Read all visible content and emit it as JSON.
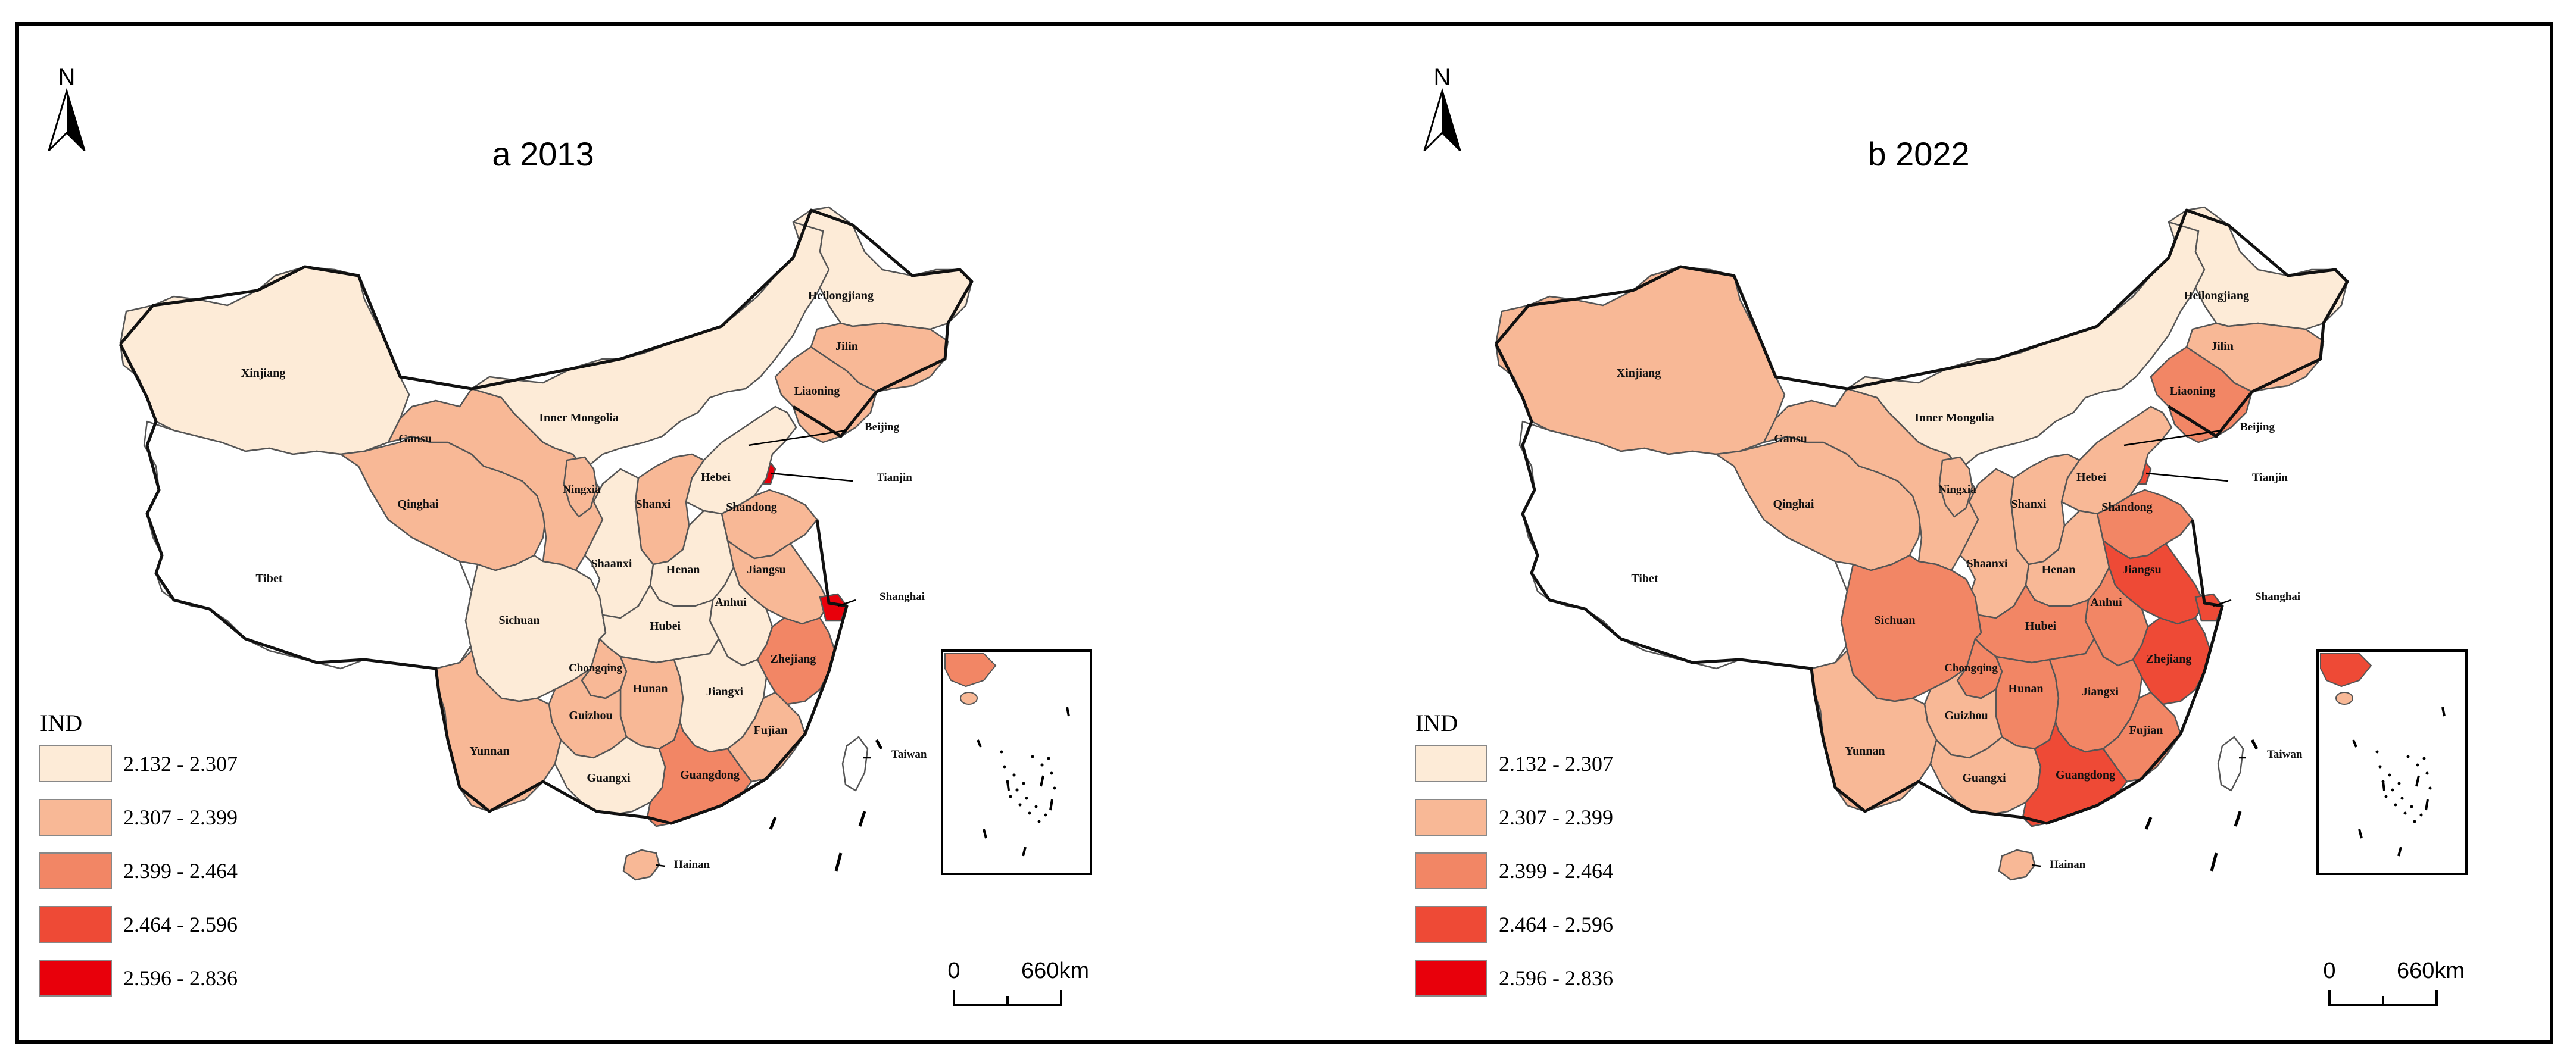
{
  "maps": [
    {
      "title": "a 2013",
      "north": "N",
      "legend_title": "IND",
      "scale": {
        "zero": "0",
        "dist": "660km"
      },
      "provinces": [
        {
          "name": "Xinjiang",
          "cls": 0
        },
        {
          "name": "Tibet",
          "cls": -1
        },
        {
          "name": "Qinghai",
          "cls": 1
        },
        {
          "name": "Gansu",
          "cls": 1
        },
        {
          "name": "Inner Mongolia",
          "cls": 0
        },
        {
          "name": "Heilongjiang",
          "cls": 0
        },
        {
          "name": "Jilin",
          "cls": 1
        },
        {
          "name": "Liaoning",
          "cls": 1
        },
        {
          "name": "Beijing",
          "cls": 4
        },
        {
          "name": "Tianjin",
          "cls": 4
        },
        {
          "name": "Hebei",
          "cls": 0
        },
        {
          "name": "Shandong",
          "cls": 1
        },
        {
          "name": "Ningxia",
          "cls": 1
        },
        {
          "name": "Shanxi",
          "cls": 1
        },
        {
          "name": "Shaanxi",
          "cls": 0
        },
        {
          "name": "Henan",
          "cls": 0
        },
        {
          "name": "Jiangsu",
          "cls": 1
        },
        {
          "name": "Shanghai",
          "cls": 4
        },
        {
          "name": "Anhui",
          "cls": 0
        },
        {
          "name": "Sichuan",
          "cls": 0
        },
        {
          "name": "Hubei",
          "cls": 0
        },
        {
          "name": "Chongqing",
          "cls": 1
        },
        {
          "name": "Zhejiang",
          "cls": 2
        },
        {
          "name": "Hunan",
          "cls": 1
        },
        {
          "name": "Jiangxi",
          "cls": 0
        },
        {
          "name": "Guizhou",
          "cls": 1
        },
        {
          "name": "Yunnan",
          "cls": 1
        },
        {
          "name": "Fujian",
          "cls": 1
        },
        {
          "name": "Guangxi",
          "cls": 0
        },
        {
          "name": "Guangdong",
          "cls": 2
        },
        {
          "name": "Taiwan",
          "cls": -1
        },
        {
          "name": "Hainan",
          "cls": 1
        }
      ]
    },
    {
      "title": "b 2022",
      "north": "N",
      "legend_title": "IND",
      "scale": {
        "zero": "0",
        "dist": "660km"
      },
      "provinces": [
        {
          "name": "Xinjiang",
          "cls": 1
        },
        {
          "name": "Tibet",
          "cls": -1
        },
        {
          "name": "Qinghai",
          "cls": 1
        },
        {
          "name": "Gansu",
          "cls": 1
        },
        {
          "name": "Inner Mongolia",
          "cls": 0
        },
        {
          "name": "Heilongjiang",
          "cls": 0
        },
        {
          "name": "Jilin",
          "cls": 1
        },
        {
          "name": "Liaoning",
          "cls": 2
        },
        {
          "name": "Beijing",
          "cls": 4
        },
        {
          "name": "Tianjin",
          "cls": 3
        },
        {
          "name": "Hebei",
          "cls": 1
        },
        {
          "name": "Shandong",
          "cls": 2
        },
        {
          "name": "Ningxia",
          "cls": 1
        },
        {
          "name": "Shanxi",
          "cls": 1
        },
        {
          "name": "Shaanxi",
          "cls": 1
        },
        {
          "name": "Henan",
          "cls": 1
        },
        {
          "name": "Jiangsu",
          "cls": 3
        },
        {
          "name": "Shanghai",
          "cls": 3
        },
        {
          "name": "Anhui",
          "cls": 2
        },
        {
          "name": "Sichuan",
          "cls": 2
        },
        {
          "name": "Hubei",
          "cls": 2
        },
        {
          "name": "Chongqing",
          "cls": 2
        },
        {
          "name": "Zhejiang",
          "cls": 3
        },
        {
          "name": "Hunan",
          "cls": 2
        },
        {
          "name": "Jiangxi",
          "cls": 2
        },
        {
          "name": "Guizhou",
          "cls": 1
        },
        {
          "name": "Yunnan",
          "cls": 1
        },
        {
          "name": "Fujian",
          "cls": 2
        },
        {
          "name": "Guangxi",
          "cls": 1
        },
        {
          "name": "Guangdong",
          "cls": 3
        },
        {
          "name": "Taiwan",
          "cls": -1
        },
        {
          "name": "Hainan",
          "cls": 1
        }
      ]
    }
  ],
  "legend": [
    {
      "label": "2.132 - 2.307",
      "color": "#fdebd7"
    },
    {
      "label": "2.307 - 2.399",
      "color": "#f8b896"
    },
    {
      "label": "2.399 - 2.464",
      "color": "#f28665"
    },
    {
      "label": "2.464 - 2.596",
      "color": "#ee4a36"
    },
    {
      "label": "2.596 - 2.836",
      "color": "#e8000b"
    }
  ],
  "nodata_color": "#ffffff"
}
